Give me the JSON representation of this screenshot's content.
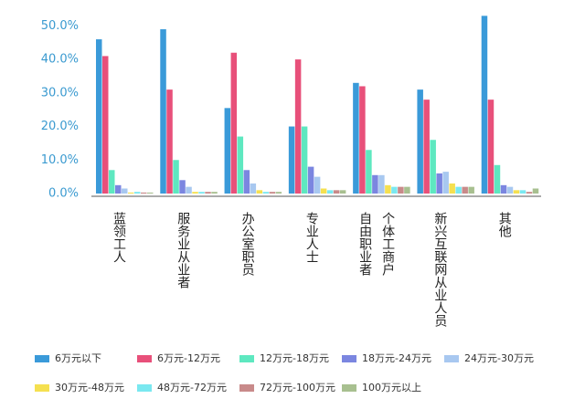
{
  "chart_data": {
    "type": "bar",
    "categories": [
      "蓝领工人",
      "服务业从业者",
      "办公室职员",
      "专业人士",
      [
        "自由职业者",
        "个体工商户"
      ],
      "新兴互联网从业人员",
      "其他"
    ],
    "series": [
      {
        "name": "6万元以下",
        "color": "#3a9ad9",
        "values": [
          46,
          49,
          25.5,
          20,
          33,
          31,
          53
        ]
      },
      {
        "name": "6万元-12万元",
        "color": "#e8507a",
        "values": [
          41,
          31,
          42,
          40,
          32,
          28,
          28
        ]
      },
      {
        "name": "12万元-18万元",
        "color": "#5ee8c0",
        "values": [
          7,
          10,
          17,
          20,
          13,
          16,
          8.5
        ]
      },
      {
        "name": "18万元-24万元",
        "color": "#7b86e0",
        "values": [
          2.5,
          4,
          7,
          8,
          5.5,
          6,
          2.5
        ]
      },
      {
        "name": "24万元-30万元",
        "color": "#a8c8f0",
        "values": [
          1.5,
          2,
          3,
          5,
          5.5,
          6.5,
          2
        ]
      },
      {
        "name": "30万元-48万元",
        "color": "#f5e050",
        "values": [
          0.3,
          0.5,
          1,
          1.5,
          2.5,
          3,
          1
        ]
      },
      {
        "name": "48万元-72万元",
        "color": "#7ae8f0",
        "values": [
          0.5,
          0.5,
          0.5,
          1,
          2,
          2,
          1
        ]
      },
      {
        "name": "72万元-100万元",
        "color": "#c88a8a",
        "values": [
          0.3,
          0.5,
          0.5,
          1,
          2,
          2,
          0.5
        ]
      },
      {
        "name": "100万元以上",
        "color": "#a8c090",
        "values": [
          0.3,
          0.5,
          0.5,
          1,
          2,
          2,
          1.5
        ]
      }
    ],
    "ylim": [
      0,
      55
    ],
    "yticks": [
      {
        "value": 0,
        "label": "0.0%"
      },
      {
        "value": 10,
        "label": "10.0%"
      },
      {
        "value": 20,
        "label": "20.0%"
      },
      {
        "value": 30,
        "label": "30.0%"
      },
      {
        "value": 40,
        "label": "40.0%"
      },
      {
        "value": 50,
        "label": "50.0%"
      }
    ],
    "grid": false
  }
}
